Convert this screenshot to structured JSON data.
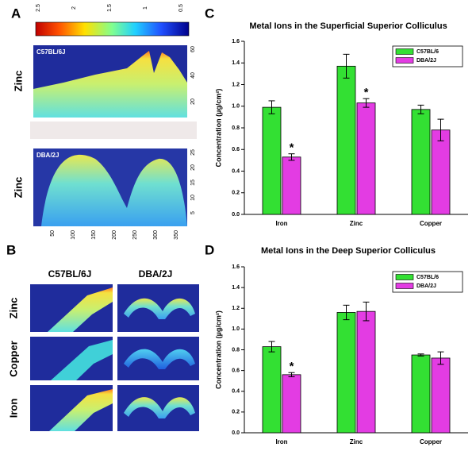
{
  "panel_labels": [
    "A",
    "B",
    "C",
    "D"
  ],
  "panel_a": {
    "colorbar_ticks": [
      2.5,
      2,
      1.5,
      1,
      0.5
    ],
    "images": [
      {
        "strain": "C57BL/6J",
        "metal": "Zinc",
        "y_ticks": [
          60,
          40,
          20
        ]
      },
      {
        "strain": "DBA/2J",
        "metal": "Zinc",
        "y_ticks": [
          25,
          20,
          15,
          10,
          5
        ]
      }
    ],
    "x_ticks": [
      50,
      100,
      150,
      200,
      250,
      300,
      350
    ]
  },
  "panel_b": {
    "columns": [
      "C57BL/6J",
      "DBA/2J"
    ],
    "rows": [
      "Zinc",
      "Copper",
      "Iron"
    ]
  },
  "chart_data": [
    {
      "type": "bar",
      "title": "Metal Ions in the Superficial Superior Colliculus",
      "y_label": "Concentration (µg/cm²)",
      "categories": [
        "Iron",
        "Zinc",
        "Copper"
      ],
      "series": [
        {
          "name": "C57BL/6",
          "color": "#33e033",
          "values": [
            0.99,
            1.37,
            0.97
          ],
          "errors": [
            0.06,
            0.11,
            0.04
          ]
        },
        {
          "name": "DBA/2J",
          "color": "#e33ce3",
          "values": [
            0.53,
            1.03,
            0.78
          ],
          "errors": [
            0.03,
            0.04,
            0.1
          ],
          "annotations": [
            "*",
            "*",
            null
          ]
        }
      ],
      "ylim": [
        0,
        1.6
      ],
      "yticks": [
        {
          "value": 0,
          "label": "0.0"
        },
        0.2,
        0.4,
        0.6,
        0.8,
        {
          "value": 1,
          "label": "1.0"
        },
        1.2,
        1.4,
        1.6
      ],
      "legend": "top-right"
    },
    {
      "type": "bar",
      "title": "Metal Ions in the Deep Superior Colliculus",
      "y_label": "Concentration (µg/cm²)",
      "categories": [
        "Iron",
        "Zinc",
        "Copper"
      ],
      "series": [
        {
          "name": "C57BL/6",
          "color": "#33e033",
          "values": [
            0.83,
            1.16,
            0.75
          ],
          "errors": [
            0.05,
            0.07,
            0.01
          ]
        },
        {
          "name": "DBA/2J",
          "color": "#e33ce3",
          "values": [
            0.56,
            1.17,
            0.72
          ],
          "errors": [
            0.02,
            0.09,
            0.06
          ],
          "annotations": [
            "*",
            null,
            null
          ]
        }
      ],
      "ylim": [
        0,
        1.6
      ],
      "yticks": [
        {
          "value": 0,
          "label": "0.0"
        },
        0.2,
        0.4,
        0.6,
        0.8,
        {
          "value": 1,
          "label": "1.0"
        },
        1.2,
        1.4,
        1.6
      ],
      "legend": "top-right"
    }
  ]
}
